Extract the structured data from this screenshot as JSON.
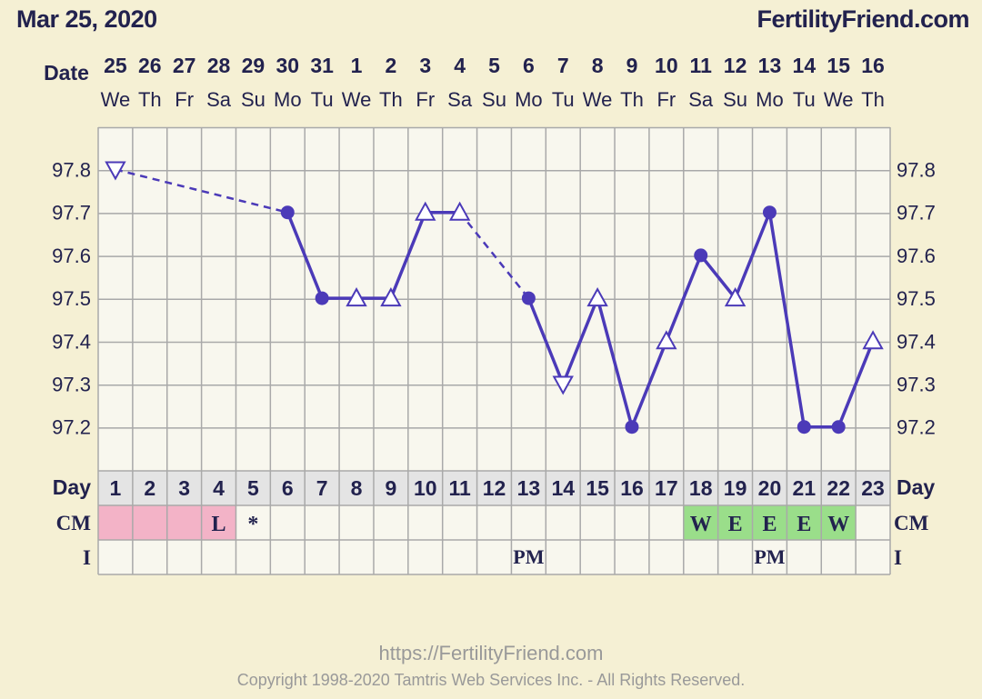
{
  "header": {
    "date": "Mar 25, 2020",
    "site": "FertilityFriend.com"
  },
  "footer": {
    "url": "https://FertilityFriend.com",
    "copyright": "Copyright 1998-2020 Tamtris Web Services Inc. - All Rights Reserved."
  },
  "colors": {
    "background": "#f5f0d4",
    "line": "#4b3ab8",
    "text": "#22224e",
    "grid": "#a9a9a9",
    "plot_bg": "#f8f7ee",
    "menses": "#f3b3c7",
    "fertile_cm": "#9ade8a"
  },
  "chart_data": {
    "type": "line",
    "row_labels": {
      "date": "Date",
      "day": "Day",
      "cm": "CM",
      "intercourse": "I"
    },
    "dates": [
      "25",
      "26",
      "27",
      "28",
      "29",
      "30",
      "31",
      "1",
      "2",
      "3",
      "4",
      "5",
      "6",
      "7",
      "8",
      "9",
      "10",
      "11",
      "12",
      "13",
      "14",
      "15",
      "16"
    ],
    "weekdays": [
      "We",
      "Th",
      "Fr",
      "Sa",
      "Su",
      "Mo",
      "Tu",
      "We",
      "Th",
      "Fr",
      "Sa",
      "Su",
      "Mo",
      "Tu",
      "We",
      "Th",
      "Fr",
      "Sa",
      "Su",
      "Mo",
      "Tu",
      "We",
      "Th"
    ],
    "cycle_days": [
      1,
      2,
      3,
      4,
      5,
      6,
      7,
      8,
      9,
      10,
      11,
      12,
      13,
      14,
      15,
      16,
      17,
      18,
      19,
      20,
      21,
      22,
      23
    ],
    "ylim": [
      97.1,
      97.9
    ],
    "yticks": [
      "97.8",
      "97.7",
      "97.6",
      "97.5",
      "97.4",
      "97.3",
      "97.2"
    ],
    "temperatures": [
      {
        "day": 1,
        "temp": 97.8,
        "marker": "triangle-down"
      },
      {
        "day": 6,
        "temp": 97.7,
        "marker": "circle"
      },
      {
        "day": 7,
        "temp": 97.5,
        "marker": "circle"
      },
      {
        "day": 8,
        "temp": 97.5,
        "marker": "triangle-up"
      },
      {
        "day": 9,
        "temp": 97.5,
        "marker": "triangle-up"
      },
      {
        "day": 10,
        "temp": 97.7,
        "marker": "triangle-up"
      },
      {
        "day": 11,
        "temp": 97.7,
        "marker": "triangle-up"
      },
      {
        "day": 13,
        "temp": 97.5,
        "marker": "circle"
      },
      {
        "day": 14,
        "temp": 97.3,
        "marker": "triangle-down"
      },
      {
        "day": 15,
        "temp": 97.5,
        "marker": "triangle-up"
      },
      {
        "day": 16,
        "temp": 97.2,
        "marker": "circle"
      },
      {
        "day": 17,
        "temp": 97.4,
        "marker": "triangle-up"
      },
      {
        "day": 18,
        "temp": 97.6,
        "marker": "circle"
      },
      {
        "day": 19,
        "temp": 97.5,
        "marker": "triangle-up"
      },
      {
        "day": 20,
        "temp": 97.7,
        "marker": "circle"
      },
      {
        "day": 21,
        "temp": 97.2,
        "marker": "circle"
      },
      {
        "day": 22,
        "temp": 97.2,
        "marker": "circle"
      },
      {
        "day": 23,
        "temp": 97.4,
        "marker": "triangle-up"
      }
    ],
    "dashed_segments": [
      [
        1,
        6
      ],
      [
        11,
        13
      ]
    ],
    "menses_days": [
      1,
      2,
      3,
      4
    ],
    "cm": {
      "4": "L",
      "5": "*",
      "18": "W",
      "19": "E",
      "20": "E",
      "21": "E",
      "22": "W"
    },
    "fertile_cm_days": [
      18,
      19,
      20,
      21,
      22
    ],
    "intercourse": {
      "13": "PM",
      "20": "PM"
    }
  }
}
